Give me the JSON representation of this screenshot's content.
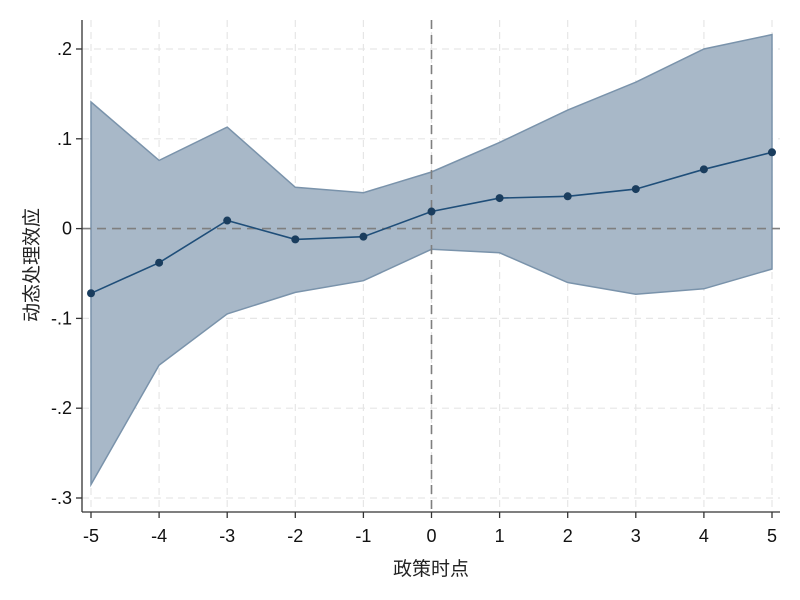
{
  "chart_data": {
    "type": "line",
    "title": "",
    "xlabel": "政策时点",
    "ylabel": "动态处理效应",
    "x": [
      -5,
      -4,
      -3,
      -2,
      -1,
      0,
      1,
      2,
      3,
      4,
      5
    ],
    "series": [
      {
        "values": [
          -0.072,
          -0.038,
          0.009,
          -0.012,
          -0.009,
          0.019,
          0.034,
          0.036,
          0.044,
          0.066,
          0.085
        ]
      }
    ],
    "ci_upper": [
      0.141,
      0.076,
      0.113,
      0.046,
      0.04,
      0.063,
      0.096,
      0.132,
      0.163,
      0.2,
      0.216
    ],
    "ci_lower": [
      -0.285,
      -0.152,
      -0.095,
      -0.071,
      -0.058,
      -0.023,
      -0.027,
      -0.06,
      -0.073,
      -0.067,
      -0.045
    ],
    "xlim": [
      -5,
      5
    ],
    "ylim": [
      -0.3,
      0.2
    ],
    "xticks": [
      -5,
      -4,
      -3,
      -2,
      -1,
      0,
      1,
      2,
      3,
      4,
      5
    ],
    "xtick_labels": [
      "-5",
      "-4",
      "-3",
      "-2",
      "-1",
      "0",
      "1",
      "2",
      "3",
      "4",
      "5"
    ],
    "yticks": [
      -0.3,
      -0.2,
      -0.1,
      0,
      0.1,
      0.2
    ],
    "ytick_labels": [
      "-.3",
      "-.2",
      "-.1",
      "0",
      ".1",
      ".2"
    ],
    "reference_lines": {
      "x": 0,
      "y": 0
    },
    "grid": true,
    "legend": "none",
    "colors": {
      "line": "#1f4e79",
      "marker": "#1a3d5e",
      "ci_fill": "#a8b8c8",
      "ci_edge": "#7a93ab",
      "grid": "#e6e6e6",
      "reference": "#7f7f7f",
      "axis": "#333333"
    }
  }
}
